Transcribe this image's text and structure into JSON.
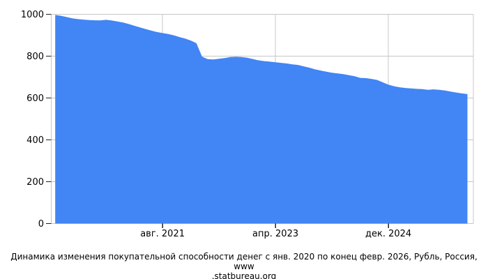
{
  "chart_data": {
    "type": "area",
    "caption_lines": [
      "Динамика изменения покупательной способности денег с янв. 2020 по конец февр. 2026, Рубль, Россия, www",
      ".statbureau.org"
    ],
    "caption_full": "Динамика изменения покупательной способности денег с янв. 2020 по конец февр. 2026, Рубль, Россия, www.statbureau.org",
    "x_start_label": "янв. 2020",
    "x_end_label": "февр. 2026",
    "x_unit": "month",
    "x_ticks": [
      {
        "month_index": 19,
        "label": "авг. 2021"
      },
      {
        "month_index": 39,
        "label": "апр. 2023"
      },
      {
        "month_index": 59,
        "label": "дек. 2024"
      }
    ],
    "y_ticks": [
      0,
      200,
      400,
      600,
      800,
      1000
    ],
    "ylim": [
      0,
      1000
    ],
    "grid": true,
    "legend": "none",
    "values": [
      997,
      993,
      987,
      981,
      977,
      974.5,
      972.5,
      971.5,
      971,
      973.5,
      970.5,
      966,
      961,
      953.5,
      945.5,
      937.5,
      929.5,
      922,
      915.5,
      910.5,
      906,
      899.5,
      891.5,
      884,
      874.5,
      862,
      798,
      786,
      784.5,
      787.5,
      791,
      795.5,
      797,
      795.5,
      792.5,
      786.5,
      780,
      776.5,
      773.5,
      771,
      768,
      765,
      760.5,
      758,
      751.5,
      745,
      737,
      731.5,
      725.5,
      720.5,
      717.5,
      714,
      709,
      704.5,
      696.5,
      695,
      691.5,
      686.5,
      675,
      663.5,
      656.5,
      651.5,
      648,
      645.5,
      643.5,
      642.5,
      639,
      641.5,
      639,
      635.5,
      631,
      626.5,
      622,
      618.5
    ]
  },
  "colors": {
    "area_fill": "#4285f4",
    "grid": "#c7c7c7",
    "tick": "#222222",
    "text": "#000000",
    "background": "#ffffff"
  }
}
